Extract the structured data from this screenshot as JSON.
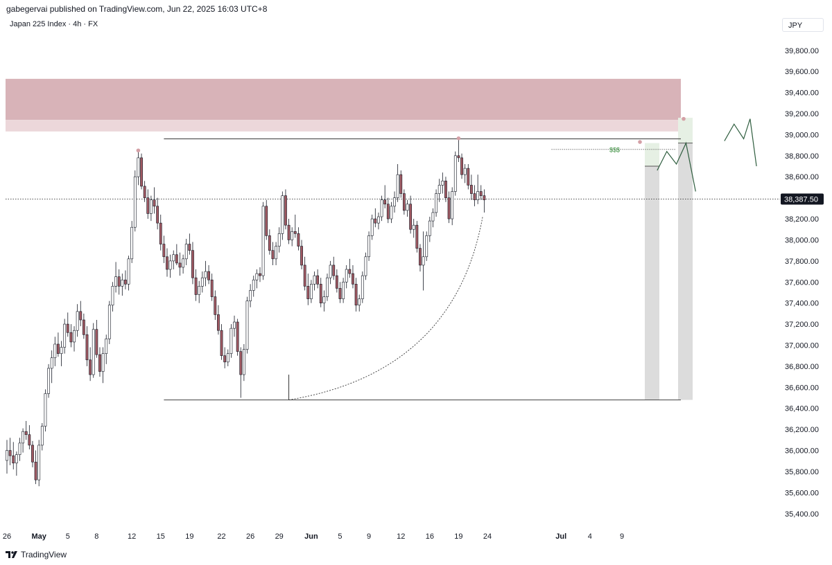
{
  "header": {
    "credit": "gabegervai published on TradingView.com, Jun 22, 2025 16:03 UTC+8",
    "symbol": "Japan 225 Index · 4h · FX",
    "currency": "JPY"
  },
  "footer": {
    "brand": "TradingView"
  },
  "colors": {
    "candle_up_fill": "#ffffff",
    "candle_down_fill": "#a15a63",
    "candle_stroke": "#131722",
    "supply_zone": "#d8b3b8",
    "supply_zone_light": "#ecd7da",
    "projection_gray": "#dcdcdc",
    "projection_green": "#e6f0e4",
    "projection_path": "#2e5d3e",
    "pivot_dot": "#d4a0a6"
  },
  "chart_data": {
    "type": "candlestick",
    "title": "Japan 225 Index · 4h · FX",
    "y_axis": {
      "ticks": [
        35400,
        35600,
        35800,
        36000,
        36200,
        36400,
        36600,
        36800,
        37000,
        37200,
        37400,
        37600,
        37800,
        38000,
        38200,
        38400,
        38600,
        38800,
        39000,
        39200,
        39400,
        39600,
        39800
      ],
      "tick_labels": [
        "35,400.00",
        "35,600.00",
        "35,800.00",
        "36,000.00",
        "36,200.00",
        "36,400.00",
        "36,600.00",
        "36,800.00",
        "37,000.00",
        "37,200.00",
        "37,400.00",
        "37,600.00",
        "37,800.00",
        "38,000.00",
        "38,200.00",
        "38,400.00",
        "38,600.00",
        "38,800.00",
        "39,000.00",
        "39,200.00",
        "39,400.00",
        "39,600.00",
        "39,800.00"
      ],
      "range": [
        35280,
        39950
      ],
      "position": "right"
    },
    "x_axis": {
      "labels": [
        {
          "text": "26",
          "bold": false
        },
        {
          "text": "May",
          "bold": true
        },
        {
          "text": "5",
          "bold": false
        },
        {
          "text": "8",
          "bold": false
        },
        {
          "text": "12",
          "bold": false
        },
        {
          "text": "15",
          "bold": false
        },
        {
          "text": "19",
          "bold": false
        },
        {
          "text": "22",
          "bold": false
        },
        {
          "text": "26",
          "bold": false
        },
        {
          "text": "29",
          "bold": false
        },
        {
          "text": "Jun",
          "bold": true
        },
        {
          "text": "5",
          "bold": false
        },
        {
          "text": "9",
          "bold": false
        },
        {
          "text": "12",
          "bold": false
        },
        {
          "text": "16",
          "bold": false
        },
        {
          "text": "19",
          "bold": false
        },
        {
          "text": "24",
          "bold": false
        },
        {
          "text": "Jul",
          "bold": true
        },
        {
          "text": "4",
          "bold": false
        },
        {
          "text": "9",
          "bold": false
        }
      ],
      "label_bar_index": [
        0,
        10,
        19,
        28,
        39,
        48,
        57,
        67,
        76,
        85,
        95,
        104,
        113,
        123,
        132,
        141,
        150,
        173,
        182,
        192
      ]
    },
    "last_price": 38387.5,
    "last_price_label": "38,387.50",
    "candles": [
      [
        35905,
        36100,
        35780,
        36000
      ],
      [
        36000,
        36120,
        35860,
        35950
      ],
      [
        35950,
        36080,
        35820,
        35880
      ],
      [
        35880,
        35990,
        35760,
        35960
      ],
      [
        35960,
        36120,
        35900,
        36070
      ],
      [
        36070,
        36210,
        35980,
        36180
      ],
      [
        36180,
        36280,
        36100,
        36150
      ],
      [
        36150,
        36240,
        36010,
        36050
      ],
      [
        36050,
        36090,
        35840,
        35890
      ],
      [
        35890,
        36000,
        35680,
        35720
      ],
      [
        35720,
        36100,
        35660,
        36050
      ],
      [
        36050,
        36260,
        36000,
        36230
      ],
      [
        36230,
        36580,
        36180,
        36540
      ],
      [
        36540,
        36820,
        36500,
        36780
      ],
      [
        36780,
        36950,
        36640,
        36880
      ],
      [
        36880,
        37080,
        36800,
        37010
      ],
      [
        37010,
        37120,
        36890,
        36920
      ],
      [
        36920,
        37040,
        36800,
        36980
      ],
      [
        36980,
        37250,
        36920,
        37200
      ],
      [
        37200,
        37310,
        37080,
        37120
      ],
      [
        37120,
        37200,
        36980,
        37030
      ],
      [
        37030,
        37180,
        36940,
        37140
      ],
      [
        37140,
        37390,
        37080,
        37320
      ],
      [
        37320,
        37420,
        37180,
        37240
      ],
      [
        37240,
        37300,
        37060,
        37100
      ],
      [
        37100,
        37180,
        36800,
        36860
      ],
      [
        36860,
        36980,
        36660,
        36720
      ],
      [
        36720,
        37210,
        36690,
        37150
      ],
      [
        37150,
        37240,
        36880,
        36910
      ],
      [
        36910,
        36980,
        36700,
        36750
      ],
      [
        36750,
        36980,
        36640,
        36920
      ],
      [
        36920,
        37100,
        36820,
        37060
      ],
      [
        37060,
        37420,
        37010,
        37380
      ],
      [
        37380,
        37600,
        37320,
        37560
      ],
      [
        37560,
        37790,
        37500,
        37650
      ],
      [
        37650,
        37720,
        37480,
        37560
      ],
      [
        37560,
        37680,
        37470,
        37620
      ],
      [
        37620,
        37710,
        37530,
        37580
      ],
      [
        37580,
        37850,
        37520,
        37820
      ],
      [
        37820,
        38180,
        37780,
        38120
      ],
      [
        38120,
        38660,
        38080,
        38600
      ],
      [
        38600,
        38850,
        38520,
        38780
      ],
      [
        38780,
        38820,
        38480,
        38510
      ],
      [
        38510,
        38560,
        38360,
        38400
      ],
      [
        38400,
        38480,
        38200,
        38250
      ],
      [
        38250,
        38420,
        38180,
        38380
      ],
      [
        38380,
        38500,
        38250,
        38320
      ],
      [
        38320,
        38400,
        38100,
        38160
      ],
      [
        38160,
        38240,
        37900,
        37960
      ],
      [
        37960,
        38040,
        37780,
        37840
      ],
      [
        37840,
        37920,
        37650,
        37720
      ],
      [
        37720,
        37860,
        37640,
        37800
      ],
      [
        37800,
        37900,
        37720,
        37860
      ],
      [
        37860,
        37960,
        37760,
        37780
      ],
      [
        37780,
        37880,
        37660,
        37740
      ],
      [
        37740,
        37860,
        37680,
        37820
      ],
      [
        37820,
        38010,
        37760,
        37960
      ],
      [
        37960,
        38060,
        37860,
        37900
      ],
      [
        37900,
        37980,
        37580,
        37640
      ],
      [
        37640,
        37720,
        37420,
        37480
      ],
      [
        37480,
        37610,
        37400,
        37560
      ],
      [
        37560,
        37700,
        37500,
        37640
      ],
      [
        37640,
        37800,
        37560,
        37700
      ],
      [
        37700,
        37760,
        37580,
        37620
      ],
      [
        37620,
        37680,
        37420,
        37460
      ],
      [
        37460,
        37520,
        37240,
        37290
      ],
      [
        37290,
        37380,
        37100,
        37140
      ],
      [
        37140,
        37200,
        36860,
        36900
      ],
      [
        36900,
        36980,
        36780,
        36840
      ],
      [
        36840,
        36960,
        36800,
        36920
      ],
      [
        36920,
        37200,
        36880,
        37160
      ],
      [
        37160,
        37280,
        37080,
        37220
      ],
      [
        37220,
        37250,
        36900,
        36940
      ],
      [
        36940,
        36980,
        36500,
        36720
      ],
      [
        36720,
        37010,
        36660,
        36960
      ],
      [
        36960,
        37460,
        36920,
        37420
      ],
      [
        37420,
        37580,
        37360,
        37520
      ],
      [
        37520,
        37660,
        37460,
        37620
      ],
      [
        37620,
        37720,
        37540,
        37680
      ],
      [
        37680,
        37740,
        37600,
        37660
      ],
      [
        37660,
        38360,
        37620,
        38320
      ],
      [
        38320,
        38380,
        38000,
        38040
      ],
      [
        38040,
        38100,
        37860,
        37900
      ],
      [
        37900,
        37980,
        37760,
        37820
      ],
      [
        37820,
        37980,
        37760,
        37940
      ],
      [
        37940,
        38120,
        37880,
        38060
      ],
      [
        38060,
        38460,
        38000,
        38420
      ],
      [
        38420,
        38480,
        38100,
        38140
      ],
      [
        38140,
        38200,
        37960,
        38000
      ],
      [
        38000,
        38120,
        37940,
        38080
      ],
      [
        38080,
        38240,
        38020,
        38060
      ],
      [
        38060,
        38120,
        37900,
        37940
      ],
      [
        37940,
        38000,
        37720,
        37760
      ],
      [
        37760,
        37840,
        37520,
        37560
      ],
      [
        37560,
        37680,
        37380,
        37440
      ],
      [
        37440,
        37620,
        37400,
        37580
      ],
      [
        37580,
        37700,
        37520,
        37660
      ],
      [
        37660,
        37720,
        37540,
        37580
      ],
      [
        37580,
        37640,
        37360,
        37400
      ],
      [
        37400,
        37520,
        37320,
        37460
      ],
      [
        37460,
        37680,
        37420,
        37640
      ],
      [
        37640,
        37800,
        37580,
        37760
      ],
      [
        37760,
        37840,
        37620,
        37660
      ],
      [
        37660,
        37720,
        37500,
        37540
      ],
      [
        37540,
        37600,
        37400,
        37440
      ],
      [
        37440,
        37640,
        37400,
        37600
      ],
      [
        37600,
        37760,
        37540,
        37720
      ],
      [
        37720,
        37820,
        37640,
        37680
      ],
      [
        37680,
        37760,
        37540,
        37580
      ],
      [
        37580,
        37640,
        37320,
        37380
      ],
      [
        37380,
        37480,
        37320,
        37440
      ],
      [
        37440,
        37700,
        37400,
        37660
      ],
      [
        37660,
        37880,
        37620,
        37840
      ],
      [
        37840,
        38080,
        37800,
        38040
      ],
      [
        38040,
        38240,
        38000,
        38200
      ],
      [
        38200,
        38300,
        38120,
        38160
      ],
      [
        38160,
        38260,
        38100,
        38220
      ],
      [
        38220,
        38420,
        38180,
        38380
      ],
      [
        38380,
        38520,
        38300,
        38340
      ],
      [
        38340,
        38400,
        38160,
        38200
      ],
      [
        38200,
        38360,
        38160,
        38320
      ],
      [
        38320,
        38460,
        38260,
        38400
      ],
      [
        38400,
        38720,
        38360,
        38620
      ],
      [
        38620,
        38660,
        38400,
        38440
      ],
      [
        38440,
        38480,
        38240,
        38280
      ],
      [
        38280,
        38380,
        38220,
        38340
      ],
      [
        38340,
        38420,
        38060,
        38100
      ],
      [
        38100,
        38200,
        38020,
        38140
      ],
      [
        38140,
        38180,
        37880,
        37920
      ],
      [
        37920,
        37960,
        37700,
        37760
      ],
      [
        37760,
        38080,
        37520,
        37840
      ],
      [
        37840,
        38080,
        37800,
        38040
      ],
      [
        38040,
        38220,
        37980,
        38180
      ],
      [
        38180,
        38300,
        38120,
        38260
      ],
      [
        38260,
        38480,
        38220,
        38440
      ],
      [
        38440,
        38580,
        38360,
        38520
      ],
      [
        38520,
        38640,
        38440,
        38560
      ],
      [
        38560,
        38600,
        38360,
        38400
      ],
      [
        38400,
        38460,
        38160,
        38200
      ],
      [
        38200,
        38500,
        38140,
        38460
      ],
      [
        38460,
        38840,
        38420,
        38800
      ],
      [
        38800,
        38960,
        38740,
        38780
      ],
      [
        38780,
        38820,
        38580,
        38620
      ],
      [
        38620,
        38720,
        38540,
        38680
      ],
      [
        38680,
        38720,
        38480,
        38520
      ],
      [
        38520,
        38620,
        38380,
        38440
      ],
      [
        38440,
        38520,
        38320,
        38380
      ],
      [
        38380,
        38620,
        38340,
        38460
      ],
      [
        38460,
        38520,
        38380,
        38420
      ],
      [
        38420,
        38480,
        38260,
        38380
      ]
    ],
    "levels": {
      "range_high": 38960,
      "range_low": 36480,
      "liquidity_line": 38860,
      "supply_zone": [
        39140,
        39530
      ],
      "supply_zone_light": [
        39030,
        39140
      ]
    },
    "annotations": [
      {
        "text": "$$$",
        "type": "liquidity_label"
      }
    ],
    "projection": {
      "path_1": [
        [
          203,
          38660
        ],
        [
          206,
          38840
        ],
        [
          209,
          38720
        ],
        [
          212,
          38920
        ],
        [
          215,
          38460
        ]
      ],
      "path_2": [
        [
          224,
          38940
        ],
        [
          227,
          39100
        ],
        [
          230,
          38960
        ],
        [
          232,
          39150
        ],
        [
          234,
          38700
        ]
      ]
    }
  }
}
